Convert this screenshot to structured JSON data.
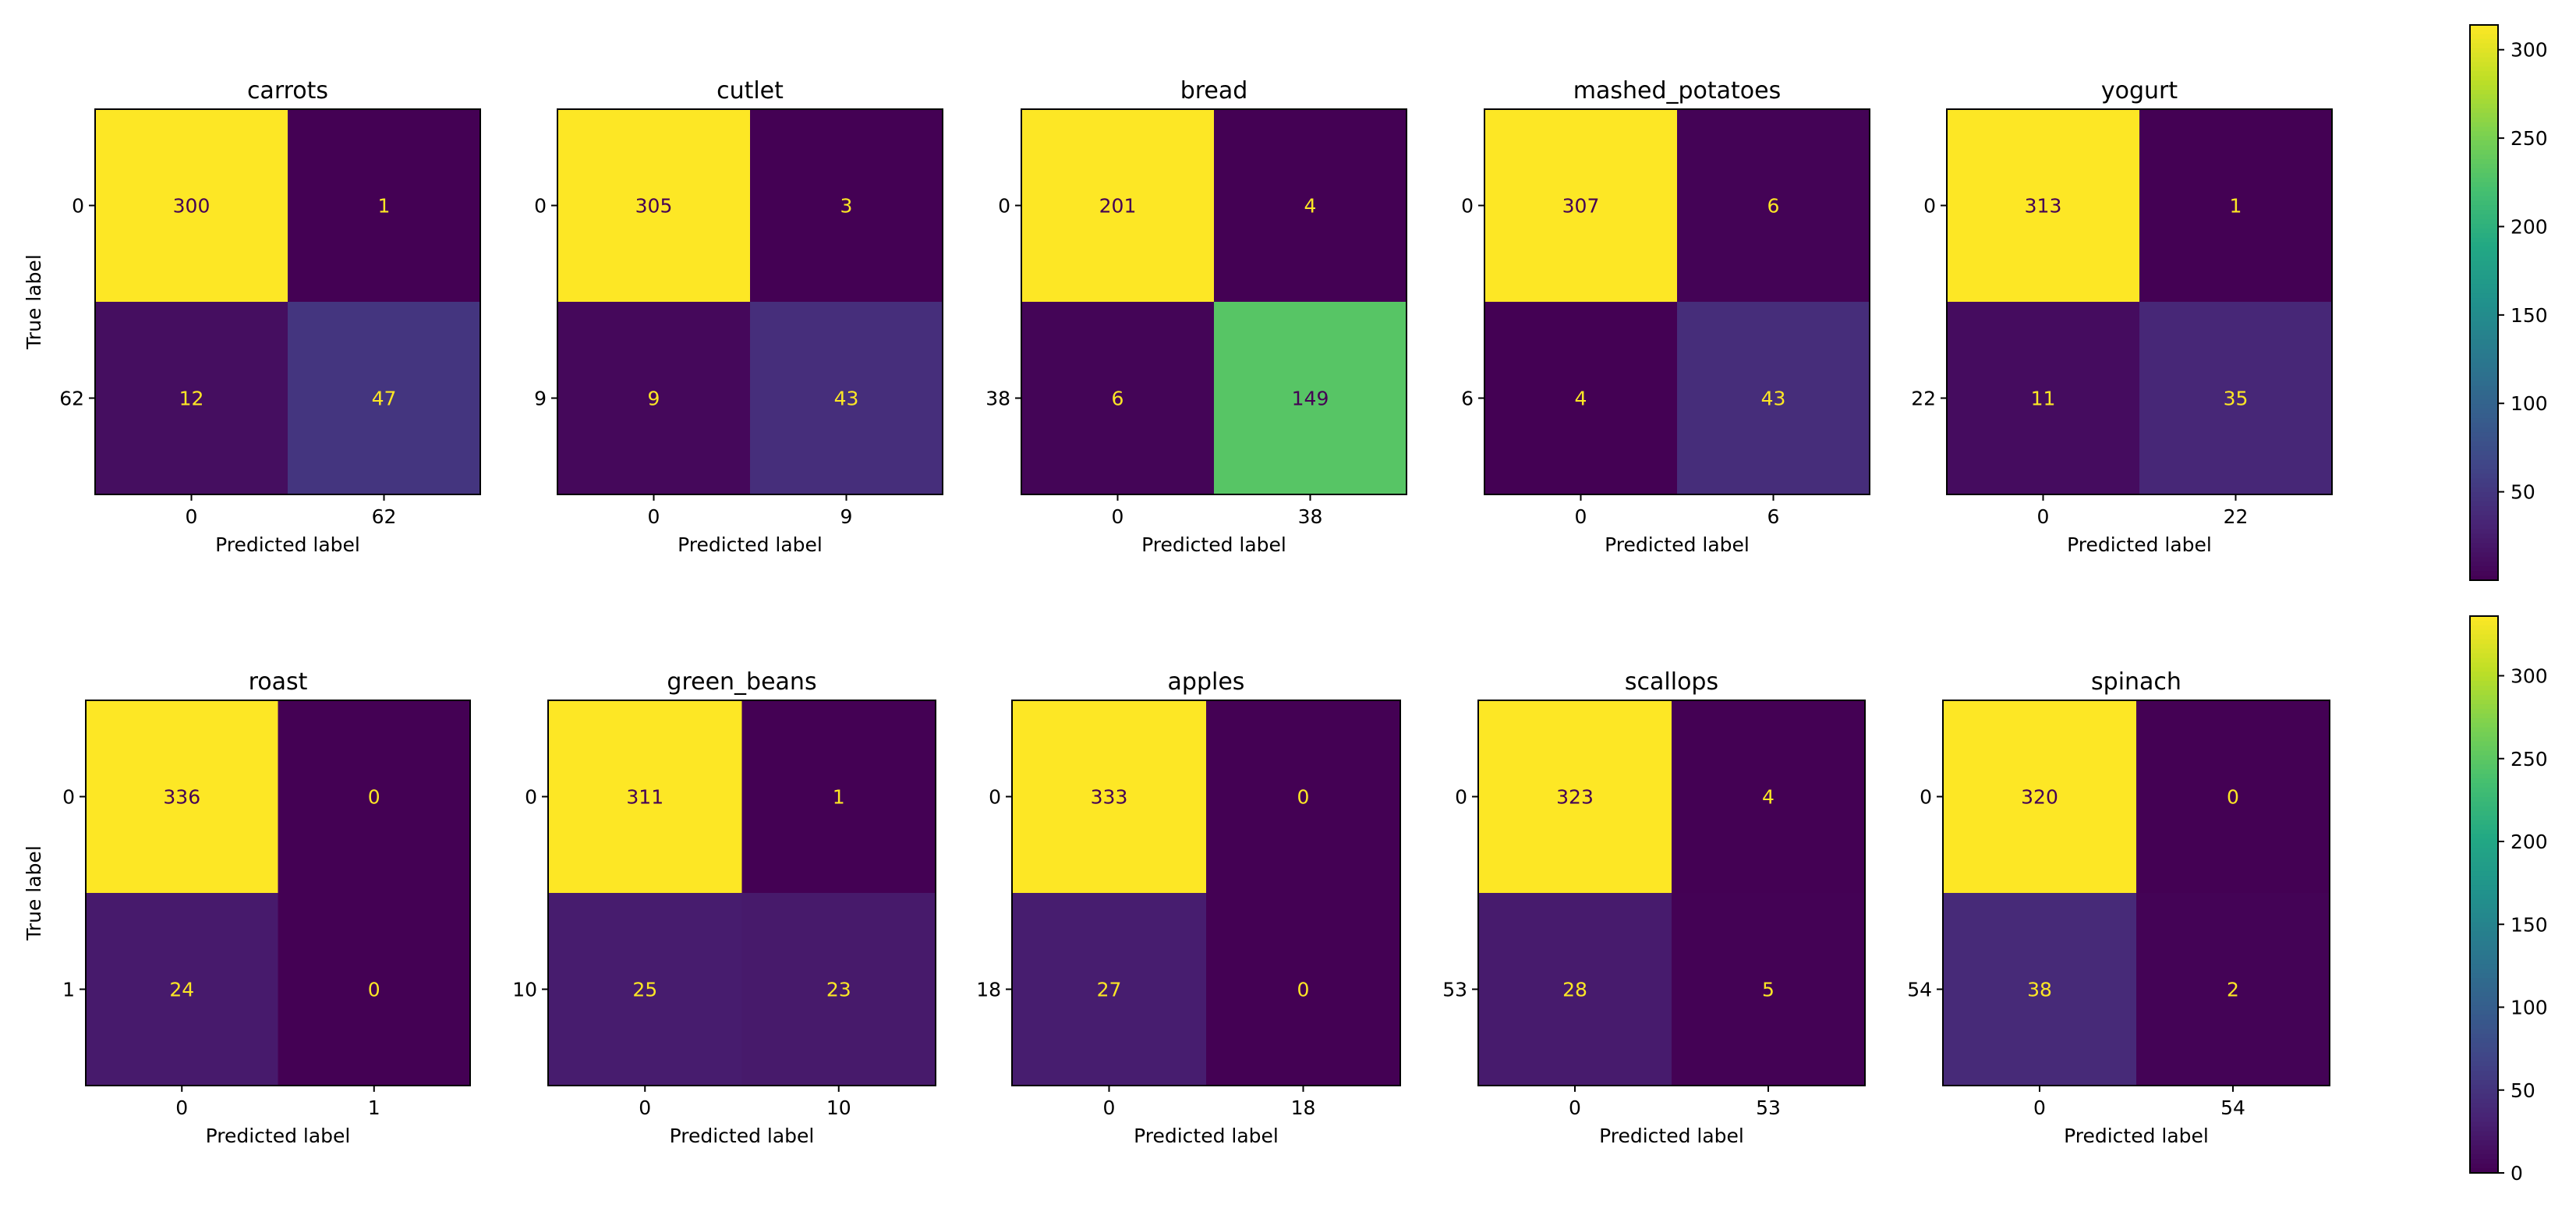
{
  "figure": {
    "colormap": "viridis",
    "chart_count": 10
  },
  "chart_data": [
    {
      "type": "heatmap",
      "title": "carrots",
      "xlabel": "Predicted label",
      "ylabel": "True label",
      "x_ticklabels": [
        "0",
        "62"
      ],
      "y_ticklabels": [
        "0",
        "62"
      ],
      "matrix": [
        [
          300,
          1
        ],
        [
          12,
          47
        ]
      ]
    },
    {
      "type": "heatmap",
      "title": "cutlet",
      "xlabel": "Predicted label",
      "ylabel": "",
      "x_ticklabels": [
        "0",
        "9"
      ],
      "y_ticklabels": [
        "0",
        "9"
      ],
      "matrix": [
        [
          305,
          3
        ],
        [
          9,
          43
        ]
      ]
    },
    {
      "type": "heatmap",
      "title": "bread",
      "xlabel": "Predicted label",
      "ylabel": "",
      "x_ticklabels": [
        "0",
        "38"
      ],
      "y_ticklabels": [
        "0",
        "38"
      ],
      "matrix": [
        [
          201,
          4
        ],
        [
          6,
          149
        ]
      ]
    },
    {
      "type": "heatmap",
      "title": "mashed_potatoes",
      "xlabel": "Predicted label",
      "ylabel": "",
      "x_ticklabels": [
        "0",
        "6"
      ],
      "y_ticklabels": [
        "0",
        "6"
      ],
      "matrix": [
        [
          307,
          6
        ],
        [
          4,
          43
        ]
      ]
    },
    {
      "type": "heatmap",
      "title": "yogurt",
      "xlabel": "Predicted label",
      "ylabel": "",
      "x_ticklabels": [
        "0",
        "22"
      ],
      "y_ticklabels": [
        "0",
        "22"
      ],
      "matrix": [
        [
          313,
          1
        ],
        [
          11,
          35
        ]
      ]
    },
    {
      "type": "heatmap",
      "title": "roast",
      "xlabel": "Predicted label",
      "ylabel": "True label",
      "x_ticklabels": [
        "0",
        "1"
      ],
      "y_ticklabels": [
        "0",
        "1"
      ],
      "matrix": [
        [
          336,
          0
        ],
        [
          24,
          0
        ]
      ]
    },
    {
      "type": "heatmap",
      "title": "green_beans",
      "xlabel": "Predicted label",
      "ylabel": "",
      "x_ticklabels": [
        "0",
        "10"
      ],
      "y_ticklabels": [
        "0",
        "10"
      ],
      "matrix": [
        [
          311,
          1
        ],
        [
          25,
          23
        ]
      ]
    },
    {
      "type": "heatmap",
      "title": "apples",
      "xlabel": "Predicted label",
      "ylabel": "",
      "x_ticklabels": [
        "0",
        "18"
      ],
      "y_ticklabels": [
        "0",
        "18"
      ],
      "matrix": [
        [
          333,
          0
        ],
        [
          27,
          0
        ]
      ]
    },
    {
      "type": "heatmap",
      "title": "scallops",
      "xlabel": "Predicted label",
      "ylabel": "",
      "x_ticklabels": [
        "0",
        "53"
      ],
      "y_ticklabels": [
        "0",
        "53"
      ],
      "matrix": [
        [
          323,
          4
        ],
        [
          28,
          5
        ]
      ]
    },
    {
      "type": "heatmap",
      "title": "spinach",
      "xlabel": "Predicted label",
      "ylabel": "",
      "x_ticklabels": [
        "0",
        "54"
      ],
      "y_ticklabels": [
        "0",
        "54"
      ],
      "matrix": [
        [
          320,
          0
        ],
        [
          38,
          2
        ]
      ]
    }
  ],
  "colorbars": [
    {
      "range": [
        0,
        314
      ],
      "ticks": [
        50,
        100,
        150,
        200,
        250,
        300
      ]
    },
    {
      "range": [
        0,
        336
      ],
      "ticks": [
        0,
        50,
        100,
        150,
        200,
        250,
        300
      ]
    }
  ]
}
